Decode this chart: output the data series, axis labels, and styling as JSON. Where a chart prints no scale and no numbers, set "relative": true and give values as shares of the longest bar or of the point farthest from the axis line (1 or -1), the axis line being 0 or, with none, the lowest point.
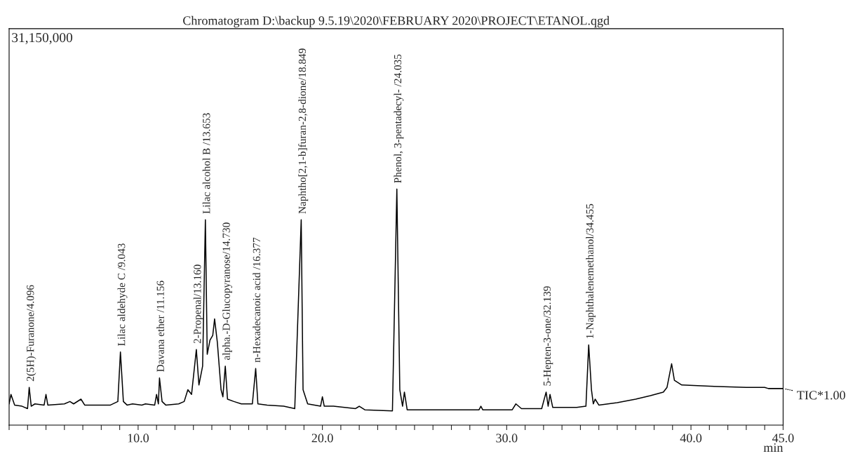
{
  "chart_data": {
    "type": "line",
    "relative": true,
    "title": "Chromatogram D:\\backup 9.5.19\\2020\\FEBRUARY 2020\\PROJECT\\ETANOL.qgd",
    "xlabel": "min",
    "xlim": [
      3,
      45
    ],
    "xticks": [
      {
        "value": 3,
        "label": null
      },
      {
        "value": 4,
        "label": null
      },
      {
        "value": 5,
        "label": null
      },
      {
        "value": 6,
        "label": null
      },
      {
        "value": 7,
        "label": null
      },
      {
        "value": 8,
        "label": null
      },
      {
        "value": 9,
        "label": null
      },
      {
        "value": 10,
        "label": "10.0"
      },
      {
        "value": 11,
        "label": null
      },
      {
        "value": 12,
        "label": null
      },
      {
        "value": 13,
        "label": null
      },
      {
        "value": 14,
        "label": null
      },
      {
        "value": 15,
        "label": null
      },
      {
        "value": 16,
        "label": null
      },
      {
        "value": 17,
        "label": null
      },
      {
        "value": 18,
        "label": null
      },
      {
        "value": 19,
        "label": null
      },
      {
        "value": 20,
        "label": "20.0"
      },
      {
        "value": 21,
        "label": null
      },
      {
        "value": 22,
        "label": null
      },
      {
        "value": 23,
        "label": null
      },
      {
        "value": 24,
        "label": null
      },
      {
        "value": 25,
        "label": null
      },
      {
        "value": 26,
        "label": null
      },
      {
        "value": 27,
        "label": null
      },
      {
        "value": 28,
        "label": null
      },
      {
        "value": 29,
        "label": null
      },
      {
        "value": 30,
        "label": "30.0"
      },
      {
        "value": 31,
        "label": null
      },
      {
        "value": 32,
        "label": null
      },
      {
        "value": 33,
        "label": null
      },
      {
        "value": 34,
        "label": null
      },
      {
        "value": 35,
        "label": null
      },
      {
        "value": 36,
        "label": null
      },
      {
        "value": 37,
        "label": null
      },
      {
        "value": 38,
        "label": null
      },
      {
        "value": 39,
        "label": null
      },
      {
        "value": 40,
        "label": "40.0"
      },
      {
        "value": 41,
        "label": null
      },
      {
        "value": 42,
        "label": null
      },
      {
        "value": 43,
        "label": null
      },
      {
        "value": 44,
        "label": null
      },
      {
        "value": 45,
        "label": "45.0"
      }
    ],
    "grid": false,
    "marker": "none",
    "line_style": "solid",
    "series": [
      {
        "color": "#000000",
        "x": [
          3.0,
          3.1,
          3.3,
          3.7,
          4.0,
          4.09,
          4.2,
          4.4,
          4.9,
          5.0,
          5.1,
          6.0,
          6.3,
          6.5,
          6.9,
          7.1,
          8.5,
          8.9,
          9.04,
          9.2,
          9.4,
          9.7,
          10.2,
          10.4,
          10.9,
          11.0,
          11.1,
          11.16,
          11.3,
          11.5,
          12.2,
          12.5,
          12.7,
          12.9,
          13.16,
          13.3,
          13.5,
          13.65,
          13.75,
          13.9,
          14.05,
          14.15,
          14.3,
          14.5,
          14.6,
          14.73,
          14.85,
          15.2,
          15.6,
          16.2,
          16.38,
          16.5,
          17.0,
          17.9,
          18.5,
          18.85,
          18.95,
          19.2,
          19.9,
          20.0,
          20.1,
          20.6,
          21.8,
          22.0,
          22.3,
          23.8,
          24.04,
          24.2,
          24.35,
          24.45,
          24.6,
          26.0,
          28.5,
          28.6,
          28.7,
          30.3,
          30.5,
          30.8,
          31.9,
          32.14,
          32.25,
          32.35,
          32.5,
          33.8,
          34.3,
          34.45,
          34.6,
          34.7,
          34.8,
          35.0,
          36.0,
          37.0,
          37.8,
          38.5,
          38.7,
          38.95,
          39.1,
          39.5,
          41.0,
          43.0,
          44.0,
          44.2,
          45.0
        ],
        "values": [
          0.09,
          0.13,
          0.085,
          0.08,
          0.07,
          0.16,
          0.08,
          0.09,
          0.085,
          0.13,
          0.085,
          0.09,
          0.1,
          0.09,
          0.11,
          0.085,
          0.085,
          0.1,
          0.31,
          0.1,
          0.085,
          0.09,
          0.085,
          0.09,
          0.085,
          0.13,
          0.09,
          0.2,
          0.1,
          0.085,
          0.09,
          0.1,
          0.15,
          0.13,
          0.32,
          0.17,
          0.25,
          0.87,
          0.3,
          0.36,
          0.38,
          0.45,
          0.35,
          0.15,
          0.12,
          0.25,
          0.11,
          0.1,
          0.09,
          0.09,
          0.24,
          0.09,
          0.085,
          0.08,
          0.07,
          0.87,
          0.15,
          0.09,
          0.08,
          0.12,
          0.08,
          0.08,
          0.07,
          0.08,
          0.065,
          0.06,
          1.0,
          0.15,
          0.08,
          0.14,
          0.065,
          0.065,
          0.065,
          0.08,
          0.065,
          0.065,
          0.09,
          0.07,
          0.07,
          0.14,
          0.08,
          0.13,
          0.075,
          0.075,
          0.08,
          0.34,
          0.15,
          0.09,
          0.11,
          0.085,
          0.095,
          0.11,
          0.125,
          0.14,
          0.16,
          0.26,
          0.19,
          0.17,
          0.165,
          0.16,
          0.16,
          0.155,
          0.155
        ]
      }
    ],
    "annotations": [
      {
        "text": "2(5H)-Furanone/4.096",
        "x": 4.096,
        "y": 0.16
      },
      {
        "text": "Lilac aldehyde C /9.043",
        "x": 9.043,
        "y": 0.31
      },
      {
        "text": "Davana ether /11.156",
        "x": 11.156,
        "y": 0.2
      },
      {
        "text": "2-Propenal/13.160",
        "x": 13.16,
        "y": 0.32
      },
      {
        "text": "Lilac alcohol B /13.653",
        "x": 13.653,
        "y": 0.87
      },
      {
        "text": "alpha.-D-Glucopyranose/14.730",
        "x": 14.73,
        "y": 0.25
      },
      {
        "text": "n-Hexadecanoic acid /16.377",
        "x": 16.377,
        "y": 0.24
      },
      {
        "text": "Naphtho[2,1-b]furan-2,8-dione/18.849",
        "x": 18.849,
        "y": 0.87
      },
      {
        "text": "Phenol, 3-pentadecyl- /24.035",
        "x": 24.035,
        "y": 1.0
      },
      {
        "text": "5-Hepten-3-one/32.139",
        "x": 32.139,
        "y": 0.14
      },
      {
        "text": "1-Naphthalenemethanol/34.455",
        "x": 34.455,
        "y": 0.34
      },
      "31,150,000",
      "TIC*1.00"
    ]
  }
}
